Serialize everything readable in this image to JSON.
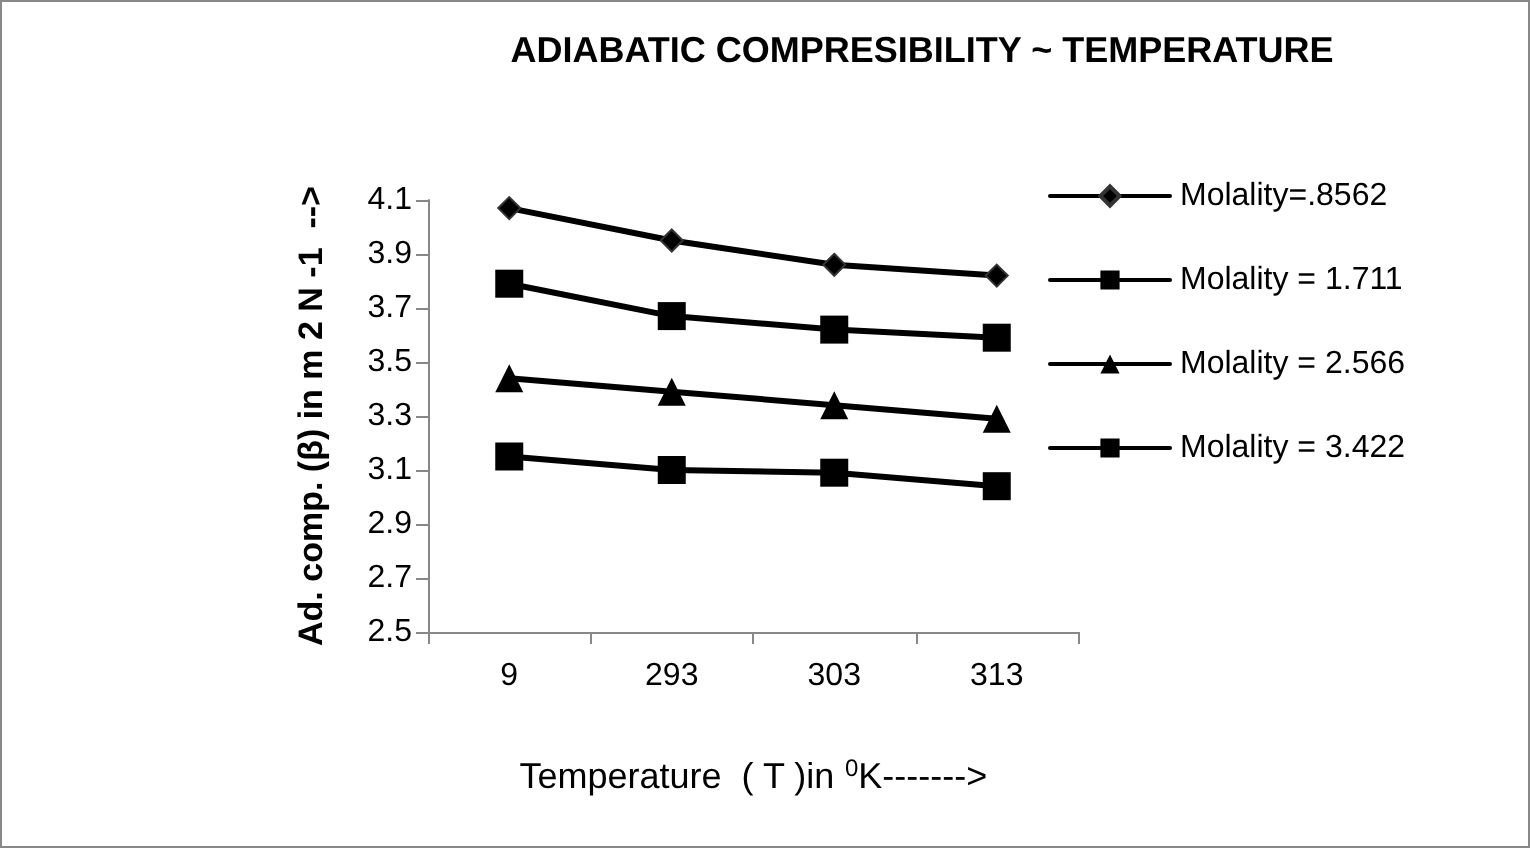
{
  "chart_data": {
    "type": "line",
    "title": "ADIABATIC COMPRESIBILITY ~ TEMPERATURE",
    "xlabel": "Temperature  ( T )in $^{0}$K------->",
    "ylabel": "Ad. comp. (β) in m 2 N -1  -->",
    "categories": [
      "9",
      "293",
      "303",
      "313"
    ],
    "series": [
      {
        "name": "Molality=.8562",
        "color": "#000000",
        "marker": "diamond",
        "values": [
          4.07,
          3.95,
          3.86,
          3.82
        ]
      },
      {
        "name": "Molality = 1.711",
        "color": "#000000",
        "marker": "square",
        "values": [
          3.79,
          3.67,
          3.62,
          3.59
        ]
      },
      {
        "name": "Molality = 2.566",
        "color": "#000000",
        "marker": "triangle",
        "values": [
          3.44,
          3.39,
          3.34,
          3.29
        ]
      },
      {
        "name": "Molality = 3.422",
        "color": "#000000",
        "marker": "square",
        "values": [
          3.15,
          3.1,
          3.09,
          3.04
        ]
      }
    ],
    "ylim": [
      2.5,
      4.1
    ],
    "yticks": [
      {
        "value": 2.5,
        "label": "2.5"
      },
      {
        "value": 2.7,
        "label": "2.7"
      },
      {
        "value": 2.9,
        "label": "2.9"
      },
      {
        "value": 3.1,
        "label": "3.1"
      },
      {
        "value": 3.3,
        "label": "3.3"
      },
      {
        "value": 3.5,
        "label": "3.5"
      },
      {
        "value": 3.7,
        "label": "3.7"
      },
      {
        "value": 3.9,
        "label": "3.9"
      },
      {
        "value": 4.1,
        "label": "4.1"
      }
    ],
    "grid": false,
    "legend": "right",
    "line_style": "solid"
  }
}
